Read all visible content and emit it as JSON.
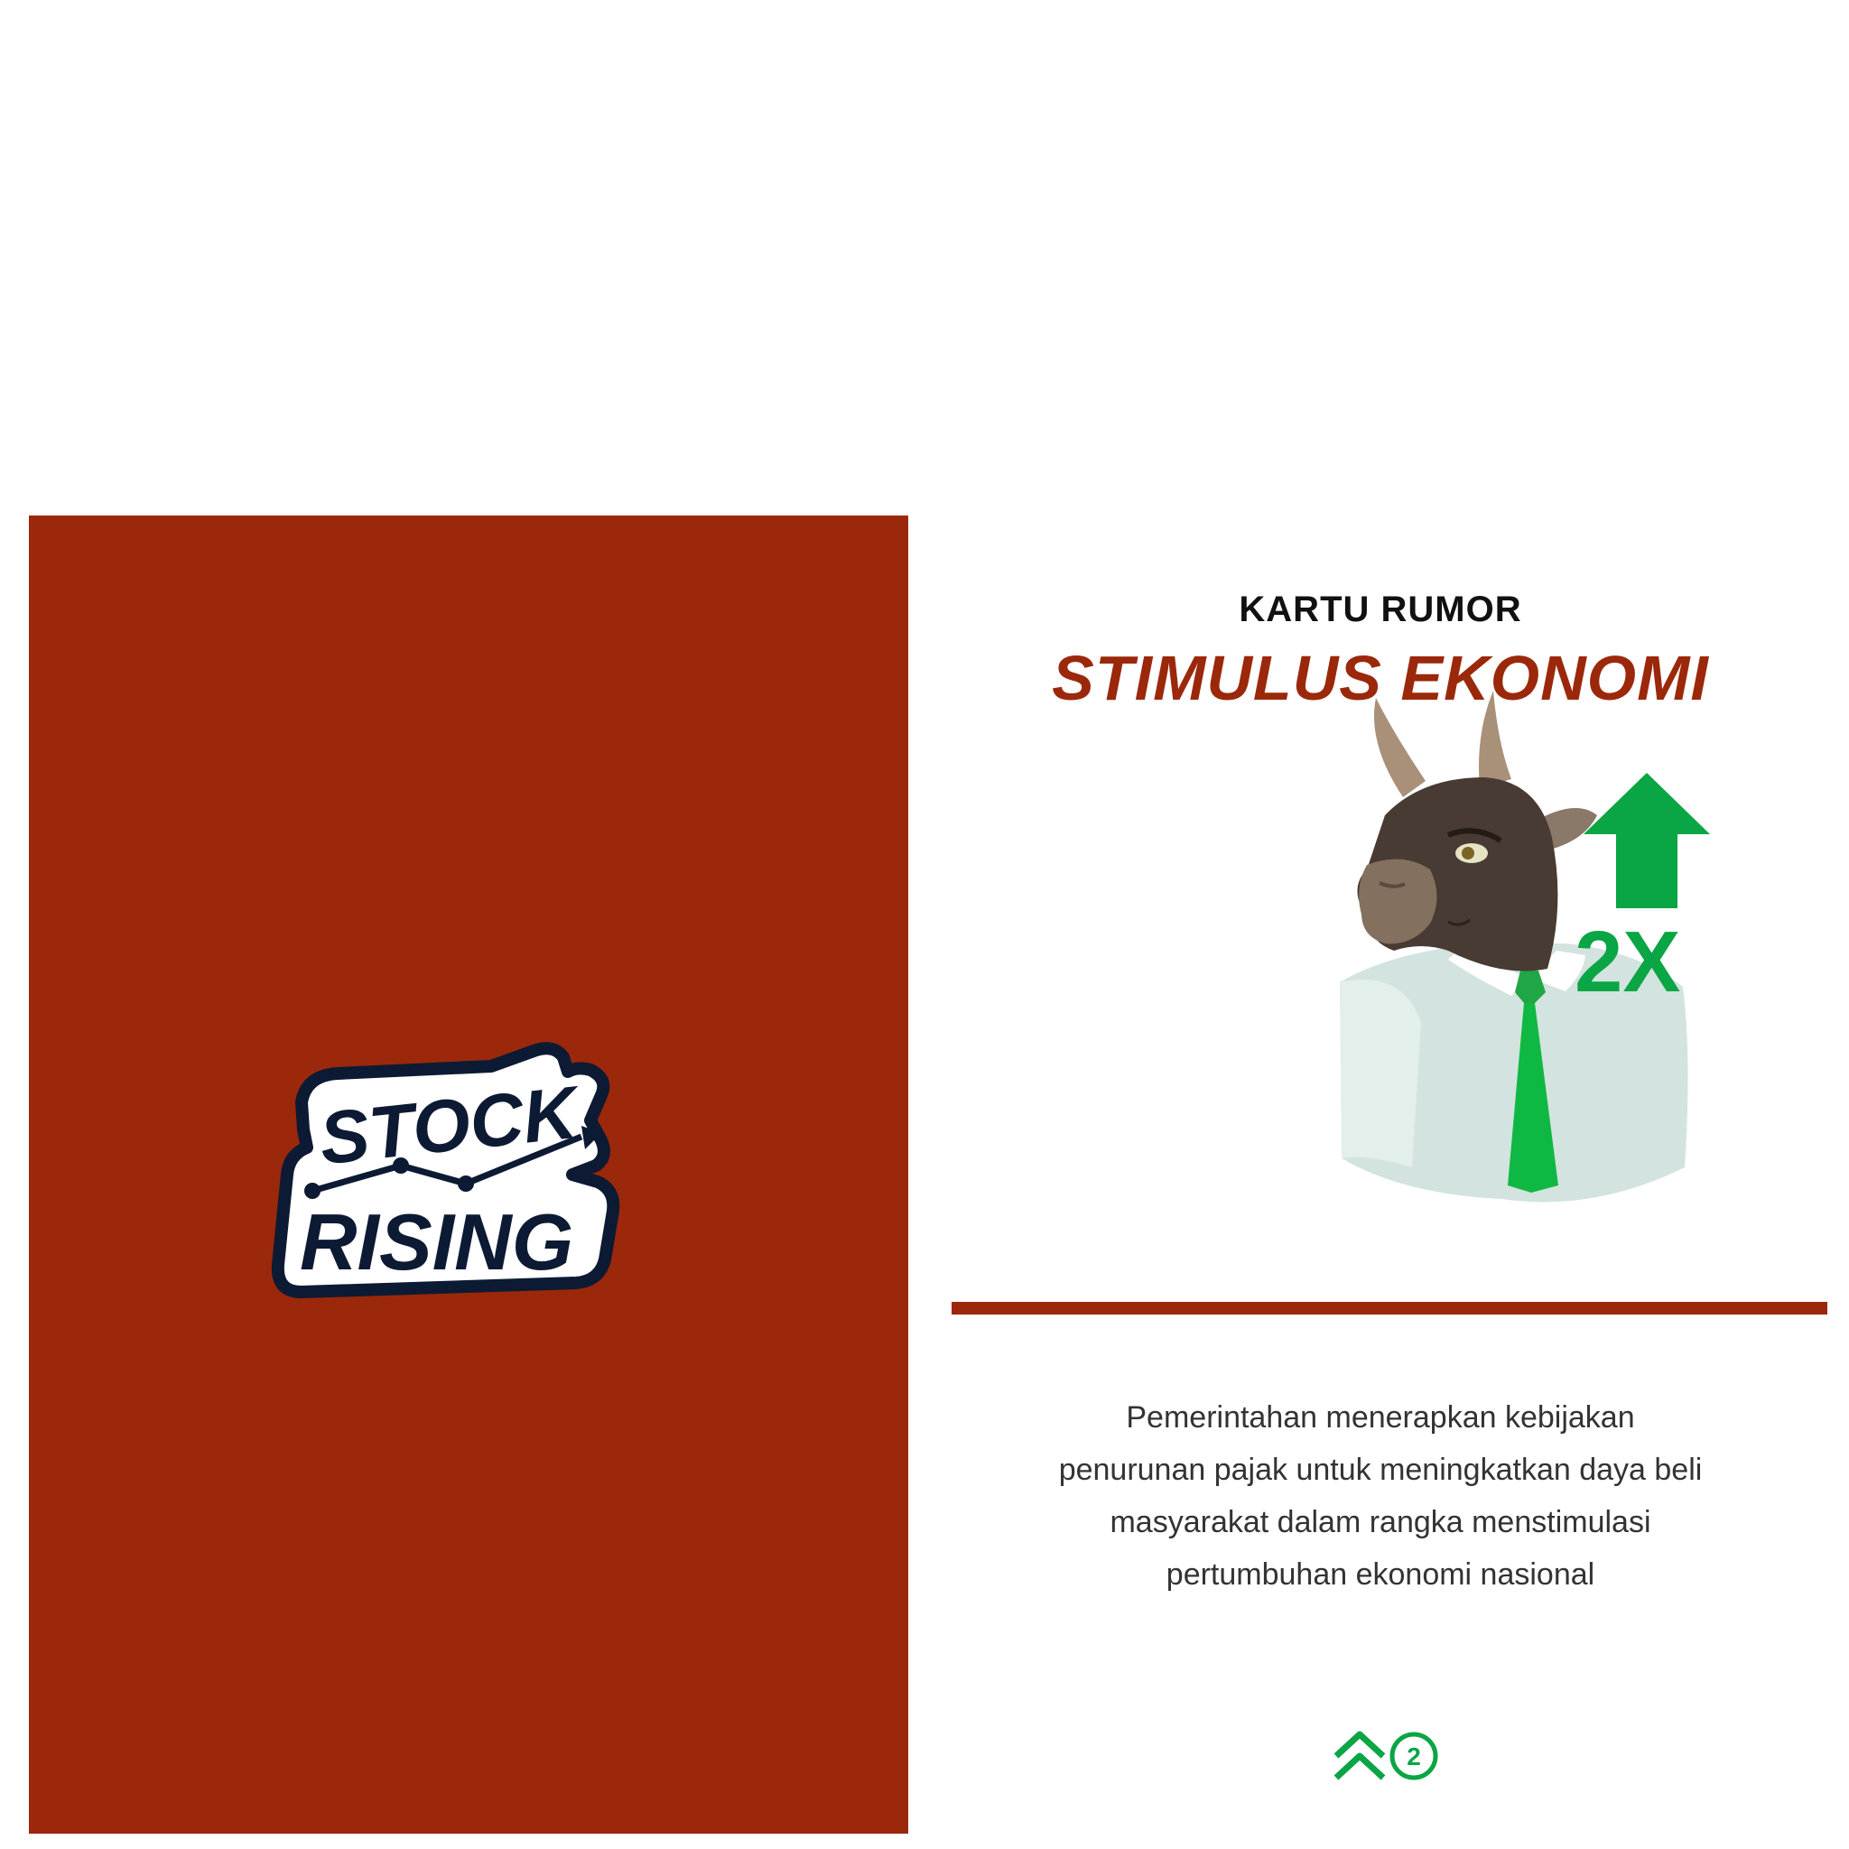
{
  "card_back": {
    "logo": {
      "line1": "STOCK",
      "line2": "RISING"
    }
  },
  "card_front": {
    "subtitle": "KARTU RUMOR",
    "title": "STIMULUS EKONOMI",
    "multiplier": "2X",
    "description": "Pemerintahan menerapkan kebijakan penurunan pajak untuk meningkatkan daya beli masyarakat dalam rangka menstimulasi pertumbuhan ekonomi nasional",
    "level_badge": "2"
  },
  "colors": {
    "card_back": "#9b280b",
    "title": "#9b280b",
    "divider": "#9b280b",
    "accent_green": "#0aa544",
    "logo_outline": "#0d1a33"
  },
  "icons": [
    "bull-mascot-illustration",
    "up-arrow-icon",
    "double-chevron-up-icon",
    "level-circle-icon"
  ]
}
